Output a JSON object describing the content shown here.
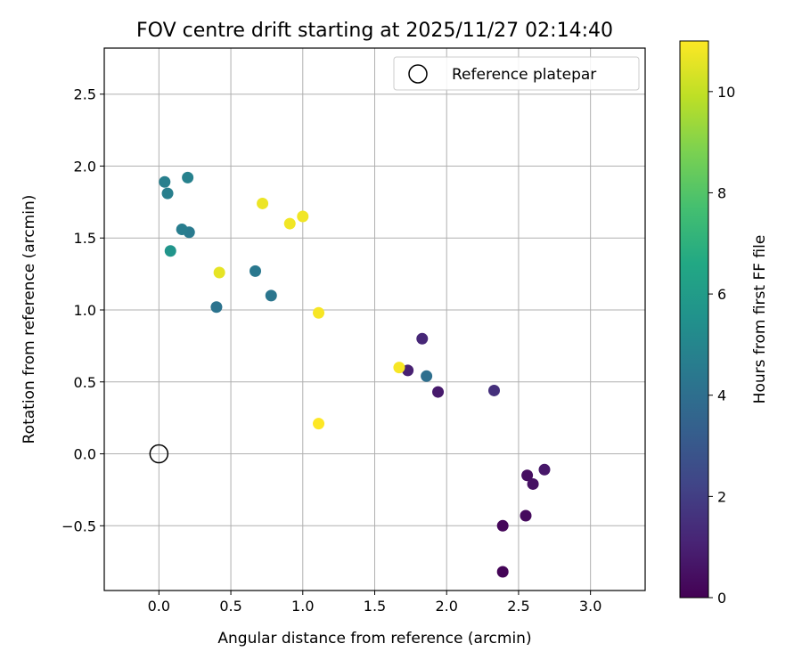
{
  "chart_data": {
    "type": "scatter",
    "title": "FOV centre drift starting at 2025/11/27 02:14:40",
    "xlabel": "Angular distance from reference (arcmin)",
    "ylabel": "Rotation from reference (arcmin)",
    "xlim": [
      -0.38,
      3.38
    ],
    "ylim": [
      -0.95,
      2.82
    ],
    "xticks": [
      0.0,
      0.5,
      1.0,
      1.5,
      2.0,
      2.5,
      3.0
    ],
    "xtick_labels": [
      "0.0",
      "0.5",
      "1.0",
      "1.5",
      "2.0",
      "2.5",
      "3.0"
    ],
    "yticks": [
      -0.5,
      0.0,
      0.5,
      1.0,
      1.5,
      2.0,
      2.5
    ],
    "ytick_labels": [
      "−0.5",
      "0.0",
      "0.5",
      "1.0",
      "1.5",
      "2.0",
      "2.5"
    ],
    "grid": true,
    "legend": {
      "position": "top-right",
      "entries": [
        "Reference platepar"
      ]
    },
    "colorbar": {
      "label": "Hours from first FF file",
      "min": 0,
      "max": 11,
      "ticks": [
        0,
        2,
        4,
        6,
        8,
        10
      ],
      "tick_labels": [
        "0",
        "2",
        "4",
        "6",
        "8",
        "10"
      ],
      "colormap": "viridis"
    },
    "reference": {
      "x": 0.0,
      "y": 0.0
    },
    "points": [
      {
        "x": 2.39,
        "y": -0.82,
        "hours": 0.1
      },
      {
        "x": 2.39,
        "y": -0.5,
        "hours": 0.2
      },
      {
        "x": 2.55,
        "y": -0.43,
        "hours": 0.3
      },
      {
        "x": 2.56,
        "y": -0.15,
        "hours": 0.4
      },
      {
        "x": 2.6,
        "y": -0.21,
        "hours": 0.5
      },
      {
        "x": 2.68,
        "y": -0.11,
        "hours": 0.7
      },
      {
        "x": 1.94,
        "y": 0.43,
        "hours": 0.8
      },
      {
        "x": 1.73,
        "y": 0.58,
        "hours": 1.0
      },
      {
        "x": 1.83,
        "y": 0.8,
        "hours": 1.2
      },
      {
        "x": 2.33,
        "y": 0.44,
        "hours": 1.5
      },
      {
        "x": 1.86,
        "y": 0.54,
        "hours": 4.0
      },
      {
        "x": 0.4,
        "y": 1.02,
        "hours": 4.2
      },
      {
        "x": 0.78,
        "y": 1.1,
        "hours": 4.3
      },
      {
        "x": 0.67,
        "y": 1.27,
        "hours": 4.4
      },
      {
        "x": 0.21,
        "y": 1.54,
        "hours": 4.5
      },
      {
        "x": 0.16,
        "y": 1.56,
        "hours": 4.6
      },
      {
        "x": 0.06,
        "y": 1.81,
        "hours": 4.7
      },
      {
        "x": 0.04,
        "y": 1.89,
        "hours": 4.7
      },
      {
        "x": 0.2,
        "y": 1.92,
        "hours": 4.8
      },
      {
        "x": 0.08,
        "y": 1.41,
        "hours": 5.7
      },
      {
        "x": 0.42,
        "y": 1.26,
        "hours": 10.6
      },
      {
        "x": 0.72,
        "y": 1.74,
        "hours": 10.7
      },
      {
        "x": 0.91,
        "y": 1.6,
        "hours": 10.8
      },
      {
        "x": 1.0,
        "y": 1.65,
        "hours": 10.8
      },
      {
        "x": 1.11,
        "y": 0.98,
        "hours": 10.9
      },
      {
        "x": 1.67,
        "y": 0.6,
        "hours": 10.9
      },
      {
        "x": 1.11,
        "y": 0.21,
        "hours": 11.0
      }
    ]
  }
}
